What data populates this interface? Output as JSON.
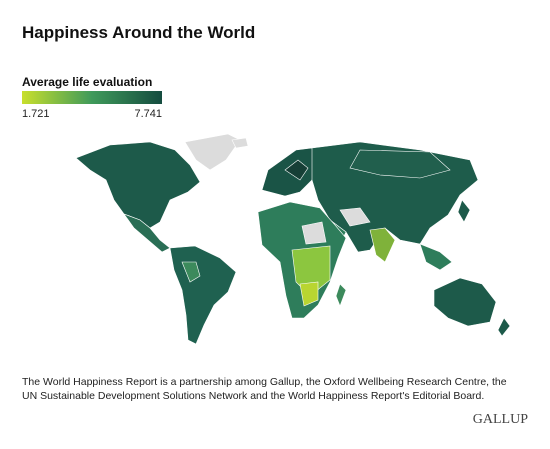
{
  "header": {
    "title": "Happiness Around the World"
  },
  "legend": {
    "title": "Average life evaluation",
    "min": "1.721",
    "max": "7.741"
  },
  "footnote": {
    "lines": [
      "The World Happiness Report is a partnership among Gallup, the Oxford Wellbeing Research Centre, the",
      "UN Sustainable Development Solutions Network and the World Happiness Report's Editorial Board."
    ]
  },
  "logo": "GALLUP"
}
